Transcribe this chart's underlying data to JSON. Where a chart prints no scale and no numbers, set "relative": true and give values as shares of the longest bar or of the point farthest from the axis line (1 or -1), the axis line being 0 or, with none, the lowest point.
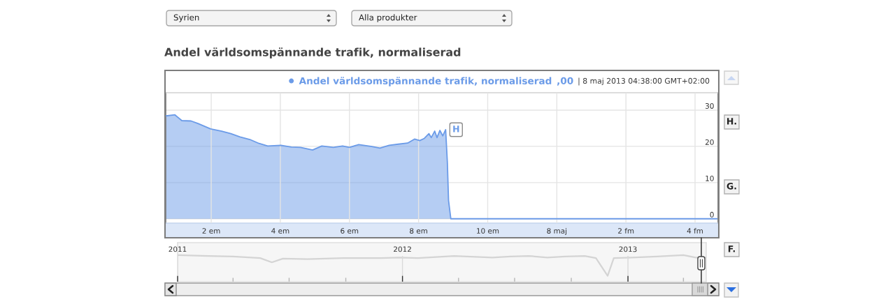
{
  "chart_data": [
    {
      "type": "area",
      "title": "Andel världsomspännande trafik, normaliserad",
      "x": [
        "2013-05-07T12:41",
        "2013-05-07T12:57",
        "2013-05-07T13:09",
        "2013-05-07T13:25",
        "2013-05-07T13:37",
        "2013-05-07T13:59",
        "2013-05-07T14:18",
        "2013-05-07T14:34",
        "2013-05-07T14:50",
        "2013-05-07T15:07",
        "2013-05-07T15:23",
        "2013-05-07T15:38",
        "2013-05-07T16:01",
        "2013-05-07T16:19",
        "2013-05-07T16:35",
        "2013-05-07T16:56",
        "2013-05-07T17:12",
        "2013-05-07T17:32",
        "2013-05-07T17:48",
        "2013-05-07T18:00",
        "2013-05-07T18:16",
        "2013-05-07T18:37",
        "2013-05-07T18:53",
        "2013-05-07T19:09",
        "2013-05-07T19:25",
        "2013-05-07T19:41",
        "2013-05-07T19:53",
        "2013-05-07T20:02",
        "2013-05-07T20:10",
        "2013-05-07T20:18",
        "2013-05-07T20:22",
        "2013-05-07T20:28",
        "2013-05-07T20:32",
        "2013-05-07T20:37",
        "2013-05-07T20:42",
        "2013-05-07T20:47",
        "2013-05-07T20:50",
        "2013-05-07T20:52",
        "2013-05-07T20:56",
        "2013-05-08T04:38"
      ],
      "series": [
        {
          "name": "Andel världsomspännande trafik, normaliserad",
          "color": "#6b9be8",
          "values": [
            28.4,
            28.7,
            27.1,
            27.0,
            26.3,
            24.8,
            24.2,
            23.5,
            22.6,
            21.9,
            20.8,
            20.1,
            20.3,
            19.8,
            19.7,
            19.0,
            20.1,
            19.7,
            20.1,
            19.7,
            20.5,
            20.0,
            19.5,
            20.3,
            20.6,
            20.9,
            22.0,
            21.6,
            22.2,
            23.5,
            22.4,
            24.2,
            22.4,
            24.4,
            22.9,
            24.6,
            15.5,
            5.1,
            0,
            0
          ]
        }
      ],
      "xlim": [
        "2013-05-07T12:41",
        "2013-05-08T04:40"
      ],
      "xticks": [
        {
          "value": "2013-05-07T14:00",
          "label": "2 em"
        },
        {
          "value": "2013-05-07T16:00",
          "label": "4 em"
        },
        {
          "value": "2013-05-07T18:00",
          "label": "6 em"
        },
        {
          "value": "2013-05-07T20:00",
          "label": "8 em"
        },
        {
          "value": "2013-05-07T22:00",
          "label": "10 em"
        },
        {
          "value": "2013-05-08T00:00",
          "label": "8 maj"
        },
        {
          "value": "2013-05-08T02:00",
          "label": "2 fm"
        },
        {
          "value": "2013-05-08T04:00",
          "label": "4 fm"
        }
      ],
      "ylim": [
        -1.2,
        34.8
      ],
      "yticks": [
        0,
        10,
        20,
        30
      ],
      "grid": true,
      "legend": "top right",
      "annotations": [
        "Syrien",
        "Alla produkter",
        ",00",
        "| 8 maj 2013 04:38:00 GMT+02:00",
        {
          "text": "H",
          "x": "2013-05-07T20:47",
          "y": 24.6
        },
        "H.",
        "G.",
        "F."
      ]
    },
    {
      "type": "line",
      "x": [
        "2011-01-01",
        "2011-02-20",
        "2011-04-01",
        "2011-05-15",
        "2011-06-03",
        "2011-06-21",
        "2011-07-31",
        "2011-09-27",
        "2011-11-27",
        "2011-12-27",
        "2012-01-26",
        "2012-03-25",
        "2012-05-26",
        "2012-06-24",
        "2012-07-24",
        "2012-08-23",
        "2012-09-21",
        "2012-10-23",
        "2012-11-10",
        "2012-11-29",
        "2012-12-09",
        "2013-01-08",
        "2013-02-17",
        "2013-04-01",
        "2013-04-21",
        "2013-05-07"
      ],
      "series": [
        {
          "color": "#d4d4d4",
          "values": [
            1.0,
            0.97,
            0.95,
            0.89,
            0.73,
            0.87,
            0.85,
            0.89,
            0.89,
            0.91,
            0.89,
            0.97,
            0.91,
            0.95,
            0.97,
            0.91,
            0.95,
            0.97,
            0.89,
            0.22,
            0.89,
            0.91,
            0.95,
            1.0,
            0.91,
            0.91
          ]
        }
      ],
      "relative": true,
      "xlim": [
        "2011-01-01",
        "2013-05-08"
      ],
      "xticks": [
        {
          "value": "2011-01-01",
          "label": "2011"
        },
        {
          "value": "2011-04-01",
          "label": null
        },
        {
          "value": "2011-07-01",
          "label": null
        },
        {
          "value": "2011-10-01",
          "label": null
        },
        {
          "value": "2012-01-01",
          "label": "2012"
        },
        {
          "value": "2012-04-01",
          "label": null
        },
        {
          "value": "2012-07-01",
          "label": null
        },
        {
          "value": "2012-10-01",
          "label": null
        },
        {
          "value": "2013-01-01",
          "label": "2013"
        },
        {
          "value": "2013-04-01",
          "label": null
        }
      ],
      "grid": "x",
      "tick_labels": "x"
    }
  ]
}
